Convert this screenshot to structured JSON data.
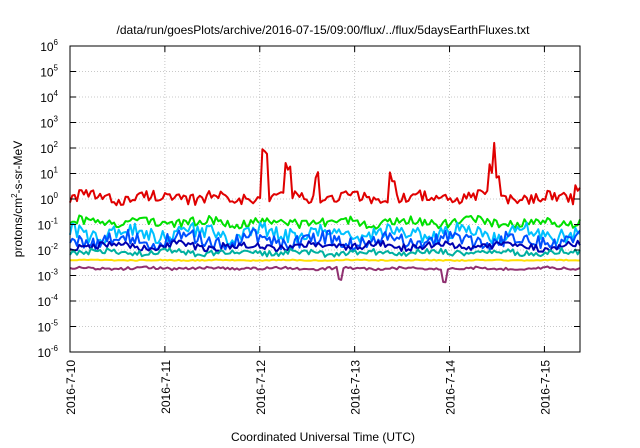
{
  "chart_data": {
    "type": "line",
    "title": "/data/run/goesPlots/archive/2016-07-15/09:00/flux/../flux/5daysEarthFluxes.txt",
    "xlabel": "Coordinated Universal Time (UTC)",
    "ylabel": {
      "pre": "protons/cm",
      "sup": "2",
      "post": "-s-sr-MeV"
    },
    "y_scale": "log",
    "ylim_exp": [
      -6,
      6
    ],
    "y_ticks": [
      {
        "base": "10",
        "exp": "-6"
      },
      {
        "base": "10",
        "exp": "-5"
      },
      {
        "base": "10",
        "exp": "-4"
      },
      {
        "base": "10",
        "exp": "-3"
      },
      {
        "base": "10",
        "exp": "-2"
      },
      {
        "base": "10",
        "exp": "-1"
      },
      {
        "base": "10",
        "exp": "0"
      },
      {
        "base": "10",
        "exp": "1"
      },
      {
        "base": "10",
        "exp": "2"
      },
      {
        "base": "10",
        "exp": "3"
      },
      {
        "base": "10",
        "exp": "4"
      },
      {
        "base": "10",
        "exp": "5"
      },
      {
        "base": "10",
        "exp": "6"
      }
    ],
    "xlim": [
      "2016-07-10 00:00",
      "2016-07-15 09:00"
    ],
    "x_ticks": [
      "2016-7-10",
      "2016-7-11",
      "2016-7-12",
      "2016-7-13",
      "2016-7-14",
      "2016-7-15"
    ],
    "grid": true,
    "series": [
      {
        "color": "#e00000",
        "base_log": 0.05,
        "noise": 0.22,
        "spikes": [
          [
            2.05,
            1.8
          ],
          [
            2.3,
            1.2
          ],
          [
            2.6,
            1.0
          ],
          [
            3.4,
            0.9
          ],
          [
            4.45,
            1.1
          ],
          [
            4.5,
            0.8
          ],
          [
            5.35,
            0.5
          ]
        ]
      },
      {
        "color": "#00e000",
        "base_log": -0.9,
        "noise": 0.18,
        "spikes": []
      },
      {
        "color": "#00c0ff",
        "base_log": -1.35,
        "noise": 0.3,
        "spikes": []
      },
      {
        "color": "#0050ff",
        "base_log": -1.6,
        "noise": 0.28,
        "spikes": []
      },
      {
        "color": "#0000b0",
        "base_log": -1.85,
        "noise": 0.15,
        "spikes": []
      },
      {
        "color": "#00b0a0",
        "base_log": -2.1,
        "noise": 0.12,
        "spikes": []
      },
      {
        "color": "#ffe000",
        "base_log": -2.4,
        "noise": 0.02,
        "spikes": []
      },
      {
        "color": "#903070",
        "base_log": -2.72,
        "noise": 0.05,
        "spikes": [
          [
            2.85,
            -0.45
          ],
          [
            3.95,
            -0.55
          ]
        ]
      }
    ]
  }
}
